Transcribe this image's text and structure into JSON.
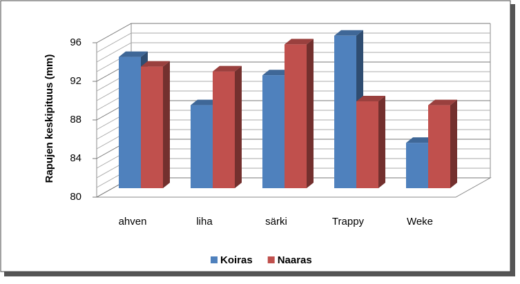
{
  "chart_data": {
    "type": "bar3d",
    "y_label": "Rapujen keskipituus (mm)",
    "categories": [
      "ahven",
      "liha",
      "särki",
      "Trappy",
      "Weke"
    ],
    "series": [
      {
        "name": "Koiras",
        "color": "#4f81bd",
        "values": [
          93.6,
          88.6,
          91.7,
          95.8,
          84.7
        ]
      },
      {
        "name": "Naaras",
        "color": "#c0504d",
        "values": [
          92.6,
          92.1,
          94.9,
          89.0,
          88.6
        ]
      }
    ],
    "ylim": [
      80,
      96
    ],
    "yticks": [
      80,
      84,
      88,
      92,
      96
    ],
    "minor_yticks": [
      81,
      82,
      83,
      85,
      86,
      87,
      89,
      90,
      91,
      93,
      94,
      95
    ],
    "grid": true,
    "legend": "bottom"
  }
}
